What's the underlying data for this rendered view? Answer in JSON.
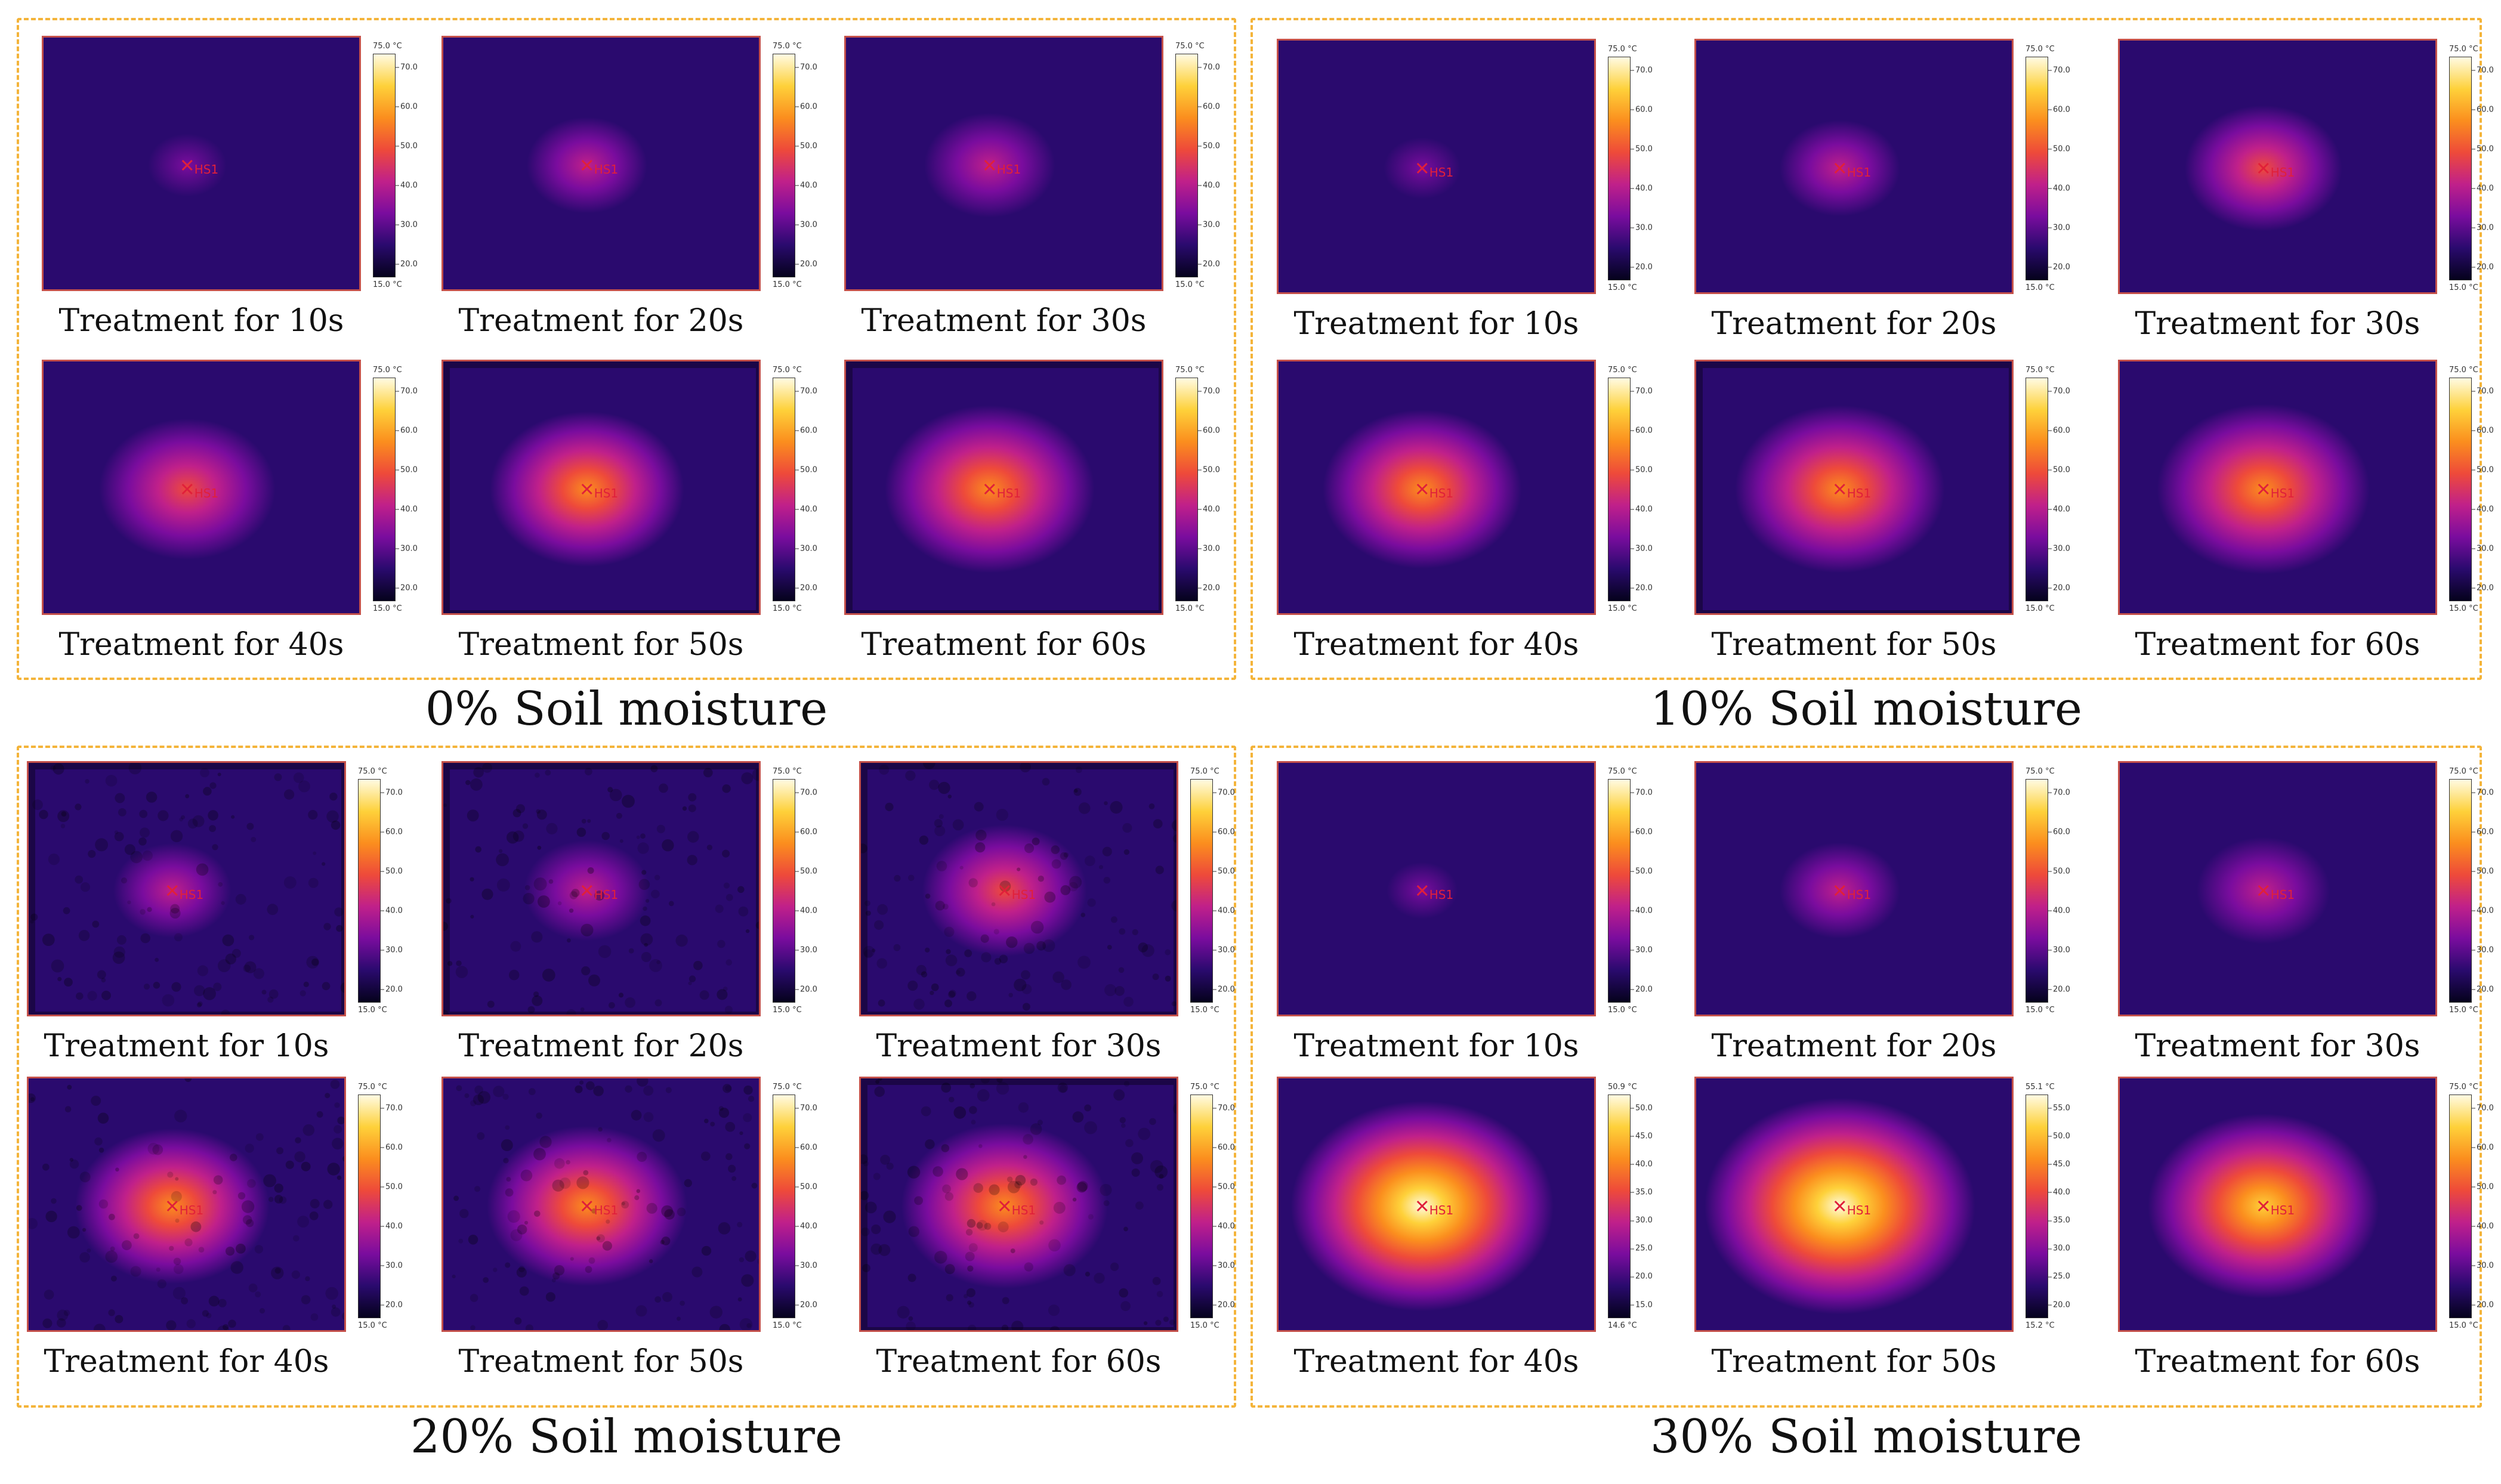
{
  "colors": {
    "frame_border": "#f4b43a",
    "image_border": "#c4504a",
    "palette": [
      "#05021c",
      "#2a0a6e",
      "#7a0c9e",
      "#c0208a",
      "#ee4a3a",
      "#fb8e1e",
      "#fed13a",
      "#fffbe3"
    ]
  },
  "groups": [
    {
      "caption": "0% Soil moisture",
      "panels": [
        {
          "caption": "Treatment for 10s",
          "marker": "HS1",
          "intensity": 0.18,
          "noise": 0,
          "vignette": false,
          "scale": {
            "max": "75.0 °C",
            "min": "15.0 °C",
            "ticks": [
              "70.0",
              "60.0",
              "50.0",
              "40.0",
              "30.0",
              "20.0"
            ]
          }
        },
        {
          "caption": "Treatment for 20s",
          "marker": "HS1",
          "intensity": 0.3,
          "noise": 0,
          "vignette": false,
          "scale": {
            "max": "75.0 °C",
            "min": "15.0 °C",
            "ticks": [
              "70.0",
              "60.0",
              "50.0",
              "40.0",
              "30.0",
              "20.0"
            ]
          }
        },
        {
          "caption": "Treatment for 30s",
          "marker": "HS1",
          "intensity": 0.38,
          "noise": 0,
          "vignette": false,
          "scale": {
            "max": "75.0 °C",
            "min": "15.0 °C",
            "ticks": [
              "70.0",
              "60.0",
              "50.0",
              "40.0",
              "30.0",
              "20.0"
            ]
          }
        },
        {
          "caption": "Treatment for 40s",
          "marker": "HS1",
          "intensity": 0.58,
          "noise": 0,
          "vignette": false,
          "scale": {
            "max": "75.0 °C",
            "min": "15.0 °C",
            "ticks": [
              "70.0",
              "60.0",
              "50.0",
              "40.0",
              "30.0",
              "20.0"
            ]
          }
        },
        {
          "caption": "Treatment for 50s",
          "marker": "HS1",
          "intensity": 0.62,
          "noise": 0,
          "vignette": true,
          "scale": {
            "max": "75.0 °C",
            "min": "15.0 °C",
            "ticks": [
              "70.0",
              "60.0",
              "50.0",
              "40.0",
              "30.0",
              "20.0"
            ]
          }
        },
        {
          "caption": "Treatment for 60s",
          "marker": "HS1",
          "intensity": 0.72,
          "noise": 0,
          "vignette": true,
          "scale": {
            "max": "75.0 °C",
            "min": "15.0 °C",
            "ticks": [
              "70.0",
              "60.0",
              "50.0",
              "40.0",
              "30.0",
              "20.0"
            ]
          }
        }
      ]
    },
    {
      "caption": "10% Soil moisture",
      "panels": [
        {
          "caption": "Treatment for 10s",
          "marker": "HS1",
          "intensity": 0.16,
          "noise": 0,
          "vignette": false,
          "scale": {
            "max": "75.0 °C",
            "min": "15.0 °C",
            "ticks": [
              "70.0",
              "60.0",
              "50.0",
              "40.0",
              "30.0",
              "20.0"
            ]
          }
        },
        {
          "caption": "Treatment for 20s",
          "marker": "HS1",
          "intensity": 0.3,
          "noise": 0,
          "vignette": false,
          "scale": {
            "max": "75.0 °C",
            "min": "15.0 °C",
            "ticks": [
              "70.0",
              "60.0",
              "50.0",
              "40.0",
              "30.0",
              "20.0"
            ]
          }
        },
        {
          "caption": "Treatment for 30s",
          "marker": "HS1",
          "intensity": 0.45,
          "noise": 0,
          "vignette": false,
          "scale": {
            "max": "75.0 °C",
            "min": "15.0 °C",
            "ticks": [
              "70.0",
              "60.0",
              "50.0",
              "40.0",
              "30.0",
              "20.0"
            ]
          }
        },
        {
          "caption": "Treatment for 40s",
          "marker": "HS1",
          "intensity": 0.65,
          "noise": 0,
          "vignette": false,
          "scale": {
            "max": "75.0 °C",
            "min": "15.0 °C",
            "ticks": [
              "70.0",
              "60.0",
              "50.0",
              "40.0",
              "30.0",
              "20.0"
            ]
          }
        },
        {
          "caption": "Treatment for 50s",
          "marker": "HS1",
          "intensity": 0.72,
          "noise": 0,
          "vignette": true,
          "scale": {
            "max": "75.0 °C",
            "min": "15.0 °C",
            "ticks": [
              "70.0",
              "60.0",
              "50.0",
              "40.0",
              "30.0",
              "20.0"
            ]
          }
        },
        {
          "caption": "Treatment for 60s",
          "marker": "HS1",
          "intensity": 0.74,
          "noise": 0,
          "vignette": false,
          "scale": {
            "max": "75.0 °C",
            "min": "15.0 °C",
            "ticks": [
              "70.0",
              "60.0",
              "50.0",
              "40.0",
              "30.0",
              "20.0"
            ]
          }
        }
      ]
    },
    {
      "caption": "20% Soil moisture",
      "panels": [
        {
          "caption": "Treatment for 10s",
          "marker": "HS1",
          "intensity": 0.28,
          "noise": 0.5,
          "vignette": true,
          "scale": {
            "max": "75.0 °C",
            "min": "15.0 °C",
            "ticks": [
              "70.0",
              "60.0",
              "50.0",
              "40.0",
              "30.0",
              "20.0"
            ]
          }
        },
        {
          "caption": "Treatment for 20s",
          "marker": "HS1",
          "intensity": 0.34,
          "noise": 0.5,
          "vignette": true,
          "scale": {
            "max": "75.0 °C",
            "min": "15.0 °C",
            "ticks": [
              "70.0",
              "60.0",
              "50.0",
              "40.0",
              "30.0",
              "20.0"
            ]
          }
        },
        {
          "caption": "Treatment for 30s",
          "marker": "HS1",
          "intensity": 0.5,
          "noise": 0.5,
          "vignette": true,
          "scale": {
            "max": "75.0 °C",
            "min": "15.0 °C",
            "ticks": [
              "70.0",
              "60.0",
              "50.0",
              "40.0",
              "30.0",
              "20.0"
            ]
          }
        },
        {
          "caption": "Treatment for 40s",
          "marker": "HS1",
          "intensity": 0.62,
          "noise": 0.5,
          "vignette": false,
          "scale": {
            "max": "75.0 °C",
            "min": "15.0 °C",
            "ticks": [
              "70.0",
              "60.0",
              "50.0",
              "40.0",
              "30.0",
              "20.0"
            ]
          }
        },
        {
          "caption": "Treatment for 50s",
          "marker": "HS1",
          "intensity": 0.66,
          "noise": 0.5,
          "vignette": false,
          "scale": {
            "max": "75.0 °C",
            "min": "15.0 °C",
            "ticks": [
              "70.0",
              "60.0",
              "50.0",
              "40.0",
              "30.0",
              "20.0"
            ]
          }
        },
        {
          "caption": "Treatment for 60s",
          "marker": "HS1",
          "intensity": 0.7,
          "noise": 0.5,
          "vignette": true,
          "scale": {
            "max": "75.0 °C",
            "min": "15.0 °C",
            "ticks": [
              "70.0",
              "60.0",
              "50.0",
              "40.0",
              "30.0",
              "20.0"
            ]
          }
        }
      ]
    },
    {
      "caption": "30% Soil moisture",
      "panels": [
        {
          "caption": "Treatment for 10s",
          "marker": "HS1",
          "intensity": 0.1,
          "noise": 0,
          "vignette": false,
          "scale": {
            "max": "75.0 °C",
            "min": "15.0 °C",
            "ticks": [
              "70.0",
              "60.0",
              "50.0",
              "40.0",
              "30.0",
              "20.0"
            ]
          }
        },
        {
          "caption": "Treatment for 20s",
          "marker": "HS1",
          "intensity": 0.3,
          "noise": 0,
          "vignette": false,
          "scale": {
            "max": "75.0 °C",
            "min": "15.0 °C",
            "ticks": [
              "70.0",
              "60.0",
              "50.0",
              "40.0",
              "30.0",
              "20.0"
            ]
          }
        },
        {
          "caption": "Treatment for 30s",
          "marker": "HS1",
          "intensity": 0.4,
          "noise": 0,
          "vignette": false,
          "scale": {
            "max": "75.0 °C",
            "min": "15.0 °C",
            "ticks": [
              "70.0",
              "60.0",
              "50.0",
              "40.0",
              "30.0",
              "20.0"
            ]
          }
        },
        {
          "caption": "Treatment for 40s",
          "marker": "HS1",
          "intensity": 0.95,
          "noise": 0,
          "vignette": false,
          "scale": {
            "max": "50.9 °C",
            "min": "14.6 °C",
            "ticks": [
              "50.0",
              "45.0",
              "40.0",
              "35.0",
              "30.0",
              "25.0",
              "20.0",
              "15.0"
            ]
          }
        },
        {
          "caption": "Treatment for 50s",
          "marker": "HS1",
          "intensity": 1.0,
          "noise": 0,
          "vignette": false,
          "scale": {
            "max": "55.1 °C",
            "min": "15.2 °C",
            "ticks": [
              "55.0",
              "50.0",
              "45.0",
              "40.0",
              "35.0",
              "30.0",
              "25.0",
              "20.0"
            ]
          }
        },
        {
          "caption": "Treatment for 60s",
          "marker": "HS1",
          "intensity": 0.8,
          "noise": 0,
          "vignette": false,
          "scale": {
            "max": "75.0 °C",
            "min": "15.0 °C",
            "ticks": [
              "70.0",
              "60.0",
              "50.0",
              "40.0",
              "30.0",
              "20.0"
            ]
          }
        }
      ]
    }
  ]
}
